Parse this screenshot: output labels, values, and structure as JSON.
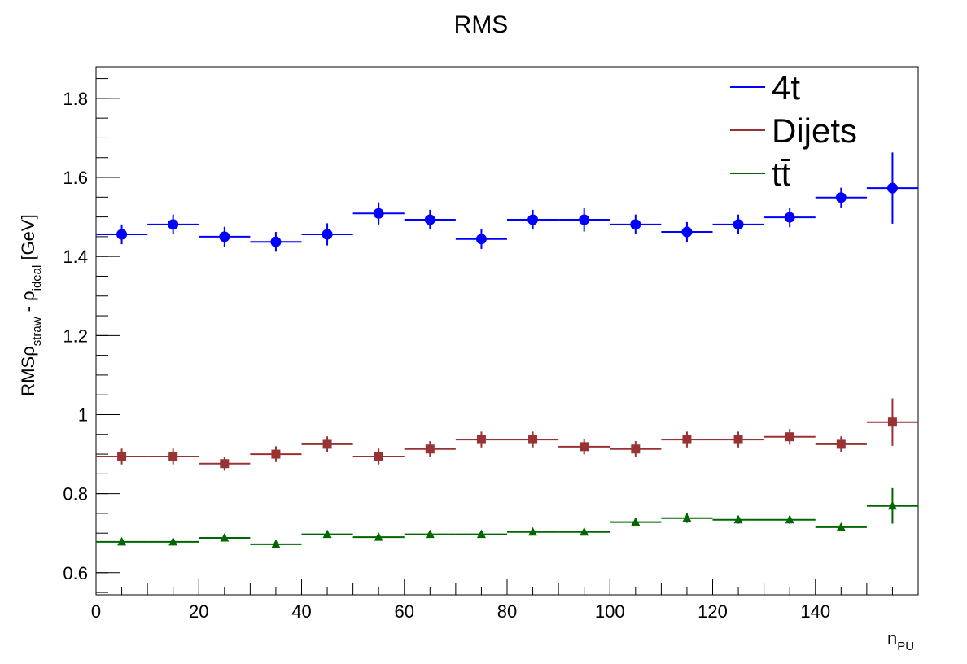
{
  "chart_data": {
    "type": "scatter",
    "title": "RMS",
    "xlabel": {
      "main": "n",
      "sub": "PU"
    },
    "ylabel": {
      "pre": "RMSρ",
      "sub1": "straw",
      "mid": " - ρ",
      "sub2": "ideal",
      "post": " [GeV]"
    },
    "xlim": [
      0,
      160
    ],
    "ylim": [
      0.544,
      1.88
    ],
    "xticks": [
      0,
      20,
      40,
      60,
      80,
      100,
      120,
      140
    ],
    "yticks": [
      0.6,
      0.8,
      1,
      1.2,
      1.4,
      1.6,
      1.8
    ],
    "ytick_labels": [
      "0.6",
      "0.8",
      "1",
      "1.2",
      "1.4",
      "1.6",
      "1.8"
    ],
    "grid": false,
    "legend_position": "top-right",
    "bin_width": 10,
    "x": [
      5,
      15,
      25,
      35,
      45,
      55,
      65,
      75,
      85,
      95,
      105,
      115,
      125,
      135,
      145,
      155
    ],
    "series": [
      {
        "name": "4t",
        "color": "#0000ff",
        "marker": "circle",
        "values": [
          1.456,
          1.481,
          1.45,
          1.437,
          1.456,
          1.509,
          1.493,
          1.444,
          1.493,
          1.493,
          1.481,
          1.462,
          1.481,
          1.499,
          1.549,
          1.573
        ],
        "errors": [
          0.025,
          0.025,
          0.025,
          0.025,
          0.028,
          0.028,
          0.025,
          0.025,
          0.025,
          0.03,
          0.025,
          0.025,
          0.025,
          0.025,
          0.025,
          0.09
        ]
      },
      {
        "name": "Dijets",
        "color": "#993333",
        "marker": "square",
        "values": [
          0.894,
          0.894,
          0.876,
          0.9,
          0.925,
          0.894,
          0.913,
          0.937,
          0.937,
          0.919,
          0.913,
          0.937,
          0.937,
          0.944,
          0.925,
          0.981
        ],
        "errors": [
          0.02,
          0.02,
          0.018,
          0.02,
          0.02,
          0.02,
          0.02,
          0.02,
          0.02,
          0.02,
          0.02,
          0.02,
          0.02,
          0.02,
          0.02,
          0.06
        ]
      },
      {
        "name": "tt̄",
        "color": "#006600",
        "marker": "triangle",
        "values": [
          0.678,
          0.678,
          0.688,
          0.672,
          0.697,
          0.69,
          0.697,
          0.697,
          0.703,
          0.703,
          0.728,
          0.738,
          0.734,
          0.734,
          0.715,
          0.769
        ],
        "errors": [
          0.008,
          0.008,
          0.008,
          0.008,
          0.008,
          0.008,
          0.008,
          0.008,
          0.008,
          0.008,
          0.01,
          0.012,
          0.01,
          0.01,
          0.008,
          0.045
        ]
      }
    ]
  }
}
